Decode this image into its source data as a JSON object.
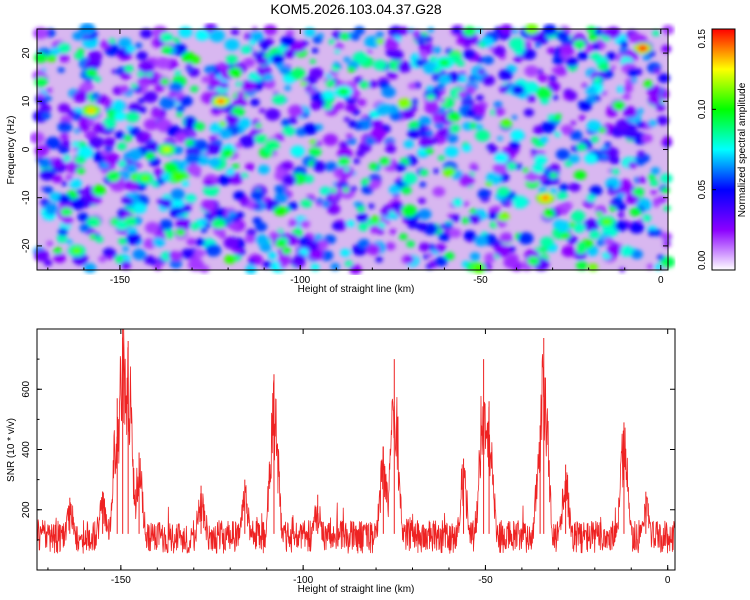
{
  "colors": {
    "snr_line": "#ee2222",
    "axis": "#000000",
    "background": "#ffffff",
    "colormap": [
      "#ffffff",
      "#8b00ff",
      "#0000ff",
      "#00ffff",
      "#00ff00",
      "#ffff00",
      "#ff0000"
    ]
  },
  "chart_data": [
    {
      "type": "heatmap",
      "title": "KOM5.2026.103.04.37.G28",
      "xlabel": "Height of straight line (km)",
      "ylabel": "Frequency (Hz)",
      "xlim": [
        -173,
        2
      ],
      "ylim": [
        -25,
        25
      ],
      "x_ticks": [
        -150,
        -100,
        -50,
        0
      ],
      "x_tick_labels": [
        "-150",
        "-100",
        "-50",
        "0"
      ],
      "y_ticks": [
        -20,
        -10,
        0,
        10,
        20
      ],
      "y_tick_labels": [
        "-20",
        "-10",
        "0",
        "10",
        "20"
      ],
      "colorbar": {
        "label": "Normalized spectral amplitude",
        "range": [
          0,
          0.15
        ],
        "ticks": [
          0,
          0.05,
          0.1,
          0.15
        ],
        "tick_labels": [
          "0.00",
          "0.05",
          "0.10",
          "0.15"
        ]
      },
      "peaks": [
        {
          "x": -5,
          "y": 21,
          "value": 0.15
        },
        {
          "x": -122,
          "y": 10,
          "value": 0.14
        },
        {
          "x": -158,
          "y": 8,
          "value": 0.13
        },
        {
          "x": -32,
          "y": -10,
          "value": 0.14
        },
        {
          "x": -137,
          "y": 0,
          "value": 0.12
        },
        {
          "x": -143,
          "y": -6,
          "value": 0.11
        },
        {
          "x": -15,
          "y": -15,
          "value": 0.11
        },
        {
          "x": -60,
          "y": 18,
          "value": 0.1
        },
        {
          "x": -88,
          "y": 12,
          "value": 0.1
        },
        {
          "x": -162,
          "y": -21,
          "value": 0.11
        }
      ]
    },
    {
      "type": "line",
      "xlabel": "Height of straight line (km)",
      "ylabel": "SNR (10 * v/v)",
      "xlim": [
        -173,
        2
      ],
      "ylim": [
        0,
        800
      ],
      "x_ticks": [
        -150,
        -100,
        -50,
        0
      ],
      "x_tick_labels": [
        "-150",
        "-100",
        "-50",
        "0"
      ],
      "y_ticks": [
        200,
        400,
        600
      ],
      "y_tick_labels": [
        "200",
        "400",
        "600"
      ],
      "noise_floor": 90,
      "noise_spread": 110,
      "peaks": [
        {
          "x": -164,
          "value": 240
        },
        {
          "x": -155,
          "value": 260
        },
        {
          "x": -151,
          "value": 570
        },
        {
          "x": -149.5,
          "value": 820
        },
        {
          "x": -148,
          "value": 760
        },
        {
          "x": -145,
          "value": 390
        },
        {
          "x": -128,
          "value": 280
        },
        {
          "x": -116,
          "value": 300
        },
        {
          "x": -108,
          "value": 650
        },
        {
          "x": -96,
          "value": 250
        },
        {
          "x": -78,
          "value": 410
        },
        {
          "x": -75,
          "value": 700
        },
        {
          "x": -56,
          "value": 370
        },
        {
          "x": -50.5,
          "value": 700
        },
        {
          "x": -49,
          "value": 560
        },
        {
          "x": -35,
          "value": 480
        },
        {
          "x": -34,
          "value": 770
        },
        {
          "x": -28,
          "value": 350
        },
        {
          "x": -12,
          "value": 490
        },
        {
          "x": -6,
          "value": 260
        }
      ]
    }
  ]
}
